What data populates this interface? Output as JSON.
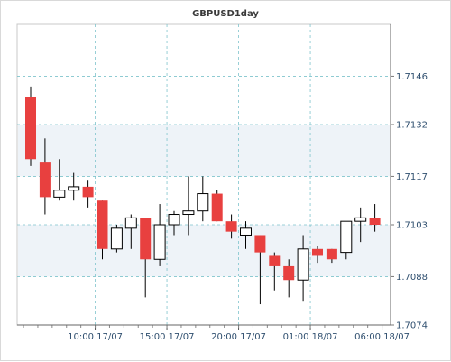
{
  "chart_data": {
    "type": "candlestick",
    "title": "GBPUSD1day",
    "xlabel": "",
    "ylabel": "",
    "ylim": [
      1.7074,
      1.7161
    ],
    "y_ticks": [
      1.7146,
      1.7132,
      1.7117,
      1.7103,
      1.7088,
      1.7074
    ],
    "x_ticks": [
      {
        "label": "10:00 17/07",
        "index": 4.5
      },
      {
        "label": "15:00 17/07",
        "index": 9.5
      },
      {
        "label": "20:00 17/07",
        "index": 14.5
      },
      {
        "label": "01:00 18/07",
        "index": 19.5
      },
      {
        "label": "06:00 18/07",
        "index": 24.5
      }
    ],
    "grid": true,
    "colors": {
      "up": "#ffffff",
      "down": "#e8403f",
      "outline": "#000000",
      "grid": "#7fc4cc"
    },
    "candles": [
      {
        "open": 1.714,
        "high": 1.7143,
        "low": 1.712,
        "close": 1.7122
      },
      {
        "open": 1.7121,
        "high": 1.7128,
        "low": 1.7106,
        "close": 1.7111
      },
      {
        "open": 1.7111,
        "high": 1.7122,
        "low": 1.711,
        "close": 1.7113
      },
      {
        "open": 1.7113,
        "high": 1.7118,
        "low": 1.711,
        "close": 1.7114
      },
      {
        "open": 1.7114,
        "high": 1.7116,
        "low": 1.7108,
        "close": 1.7111
      },
      {
        "open": 1.711,
        "high": 1.711,
        "low": 1.7093,
        "close": 1.7096
      },
      {
        "open": 1.7096,
        "high": 1.7103,
        "low": 1.7095,
        "close": 1.7102
      },
      {
        "open": 1.7102,
        "high": 1.7106,
        "low": 1.7096,
        "close": 1.7105
      },
      {
        "open": 1.7105,
        "high": 1.7105,
        "low": 1.7082,
        "close": 1.7093
      },
      {
        "open": 1.7093,
        "high": 1.7109,
        "low": 1.7091,
        "close": 1.7103
      },
      {
        "open": 1.7103,
        "high": 1.7107,
        "low": 1.71,
        "close": 1.7106
      },
      {
        "open": 1.7106,
        "high": 1.7117,
        "low": 1.71,
        "close": 1.7107
      },
      {
        "open": 1.7107,
        "high": 1.7117,
        "low": 1.7104,
        "close": 1.7112
      },
      {
        "open": 1.7112,
        "high": 1.7113,
        "low": 1.7104,
        "close": 1.7104
      },
      {
        "open": 1.7104,
        "high": 1.7106,
        "low": 1.7099,
        "close": 1.7101
      },
      {
        "open": 1.71,
        "high": 1.7104,
        "low": 1.7096,
        "close": 1.7102
      },
      {
        "open": 1.71,
        "high": 1.71,
        "low": 1.708,
        "close": 1.7095
      },
      {
        "open": 1.7094,
        "high": 1.7095,
        "low": 1.7084,
        "close": 1.7091
      },
      {
        "open": 1.7091,
        "high": 1.7093,
        "low": 1.7082,
        "close": 1.7087
      },
      {
        "open": 1.7087,
        "high": 1.71,
        "low": 1.7081,
        "close": 1.7096
      },
      {
        "open": 1.7096,
        "high": 1.7097,
        "low": 1.7092,
        "close": 1.7094
      },
      {
        "open": 1.7096,
        "high": 1.7096,
        "low": 1.7092,
        "close": 1.7093
      },
      {
        "open": 1.7095,
        "high": 1.7104,
        "low": 1.7093,
        "close": 1.7104
      },
      {
        "open": 1.7104,
        "high": 1.7108,
        "low": 1.7098,
        "close": 1.7105
      },
      {
        "open": 1.7105,
        "high": 1.7109,
        "low": 1.7101,
        "close": 1.7103
      }
    ]
  }
}
